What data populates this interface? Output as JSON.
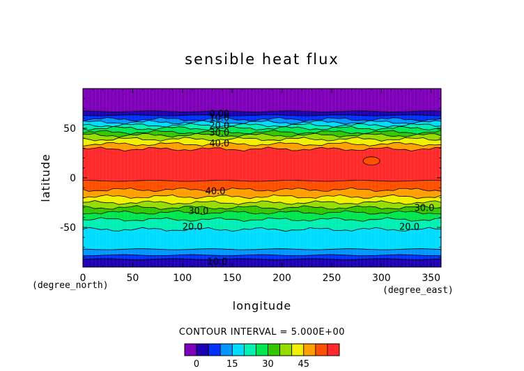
{
  "chart_data": {
    "type": "heatmap",
    "title": "sensible heat flux",
    "xlabel": "longitude",
    "ylabel": "latitude",
    "x_unit": "(degree_east)",
    "y_unit": "(degree_north)",
    "xlim": [
      0,
      360
    ],
    "ylim": [
      -90,
      90
    ],
    "x_ticks": [
      0,
      50,
      100,
      150,
      200,
      250,
      300,
      350
    ],
    "y_ticks": [
      -50,
      0,
      50
    ],
    "contour_interval_text": "CONTOUR INTERVAL = 5.000E+00",
    "contour_interval": 5,
    "levels": [
      -5,
      0,
      5,
      10,
      15,
      20,
      25,
      30,
      35,
      40,
      45,
      50
    ],
    "colors": [
      "#7e00b8",
      "#1e00b4",
      "#0032ff",
      "#0096ff",
      "#00dcff",
      "#00f0b4",
      "#00e650",
      "#32c800",
      "#96dc00",
      "#f0f000",
      "#ffa000",
      "#ff5000",
      "#ff2a2a"
    ],
    "colorbar_ticks": [
      0,
      15,
      30,
      45
    ],
    "lat_bands": [
      {
        "lat_top": 90,
        "lat_bottom": 67,
        "level": 0
      },
      {
        "lat_top": 67,
        "lat_bottom": 63,
        "level": 1
      },
      {
        "lat_top": 63,
        "lat_bottom": 59,
        "level": 2
      },
      {
        "lat_top": 59,
        "lat_bottom": 56,
        "level": 3
      },
      {
        "lat_top": 56,
        "lat_bottom": 53,
        "level": 4
      },
      {
        "lat_top": 53,
        "lat_bottom": 50,
        "level": 5
      },
      {
        "lat_top": 50,
        "lat_bottom": 46,
        "level": 6
      },
      {
        "lat_top": 46,
        "lat_bottom": 43,
        "level": 7
      },
      {
        "lat_top": 43,
        "lat_bottom": 39,
        "level": 8
      },
      {
        "lat_top": 39,
        "lat_bottom": 34,
        "level": 9
      },
      {
        "lat_top": 34,
        "lat_bottom": 29,
        "level": 10
      },
      {
        "lat_top": 29,
        "lat_bottom": -3,
        "level": 12
      },
      {
        "lat_top": -3,
        "lat_bottom": -12,
        "level": 11
      },
      {
        "lat_top": -12,
        "lat_bottom": -19,
        "level": 10
      },
      {
        "lat_top": -19,
        "lat_bottom": -25,
        "level": 9
      },
      {
        "lat_top": -25,
        "lat_bottom": -30,
        "level": 8
      },
      {
        "lat_top": -30,
        "lat_bottom": -35,
        "level": 7
      },
      {
        "lat_top": -35,
        "lat_bottom": -42,
        "level": 6
      },
      {
        "lat_top": -42,
        "lat_bottom": -52,
        "level": 5
      },
      {
        "lat_top": -52,
        "lat_bottom": -72,
        "level": 4
      },
      {
        "lat_top": -72,
        "lat_bottom": -78,
        "level": 3
      },
      {
        "lat_top": -78,
        "lat_bottom": -82,
        "level": 2
      },
      {
        "lat_top": -82,
        "lat_bottom": -90,
        "level": 1
      }
    ],
    "contour_labels": [
      {
        "text": "0.00",
        "lon": 127,
        "lat": 65
      },
      {
        "text": "10.0",
        "lon": 127,
        "lat": 61
      },
      {
        "text": "20.0",
        "lon": 127,
        "lat": 53
      },
      {
        "text": "30.0",
        "lon": 127,
        "lat": 46
      },
      {
        "text": "40.0",
        "lon": 127,
        "lat": 35
      },
      {
        "text": "40.0",
        "lon": 123,
        "lat": -13
      },
      {
        "text": "30.0",
        "lon": 106,
        "lat": -33
      },
      {
        "text": "30.0",
        "lon": 333,
        "lat": -30
      },
      {
        "text": "20.0",
        "lon": 100,
        "lat": -49
      },
      {
        "text": "20.0",
        "lon": 318,
        "lat": -49
      },
      {
        "text": "10.0",
        "lon": 125,
        "lat": -84
      }
    ],
    "blobs": [
      {
        "lon": 290,
        "lat": 17,
        "level": 11
      }
    ]
  }
}
